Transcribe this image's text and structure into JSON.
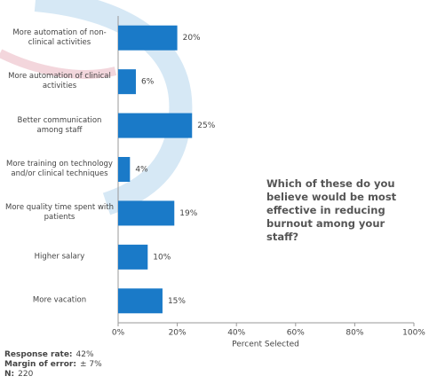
{
  "chart_data": {
    "type": "barh",
    "categories": [
      "More automation of non-clinical activities",
      "More automation of clinical activities",
      "Better communication among staff",
      "More training on technology and/or clinical techniques",
      "More quality time spent with patients",
      "Higher salary",
      "More vacation"
    ],
    "values": [
      20,
      6,
      25,
      4,
      19,
      10,
      15
    ],
    "value_labels": [
      "20%",
      "6%",
      "25%",
      "4%",
      "19%",
      "10%",
      "15%"
    ],
    "color": "#1a7ac8",
    "xlim": [
      0,
      100
    ],
    "xticks": [
      {
        "value": 0,
        "label": "0%"
      },
      {
        "value": 20,
        "label": "20%"
      },
      {
        "value": 40,
        "label": "40%"
      },
      {
        "value": 60,
        "label": "60%"
      },
      {
        "value": 80,
        "label": "80%"
      },
      {
        "value": 100,
        "label": "100%"
      }
    ],
    "xlabel": "Percent Selected",
    "annotation": "Which of these do you believe would be most effective in reducing burnout among your staff?",
    "notes": [
      {
        "label": "Response rate:",
        "value": "42%"
      },
      {
        "label": "Margin of error:",
        "value": "± 7%"
      },
      {
        "label": "N:",
        "value": "220"
      }
    ]
  }
}
